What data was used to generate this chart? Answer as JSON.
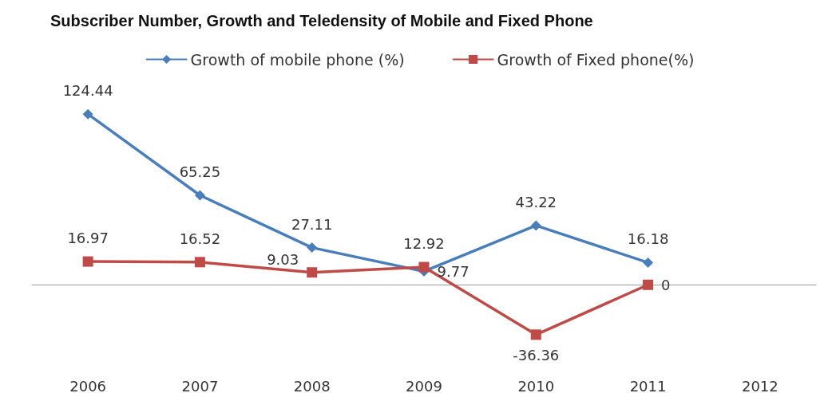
{
  "chart_data": {
    "type": "line",
    "title": "Subscriber Number, Growth and Teledensity of Mobile and Fixed Phone",
    "categories": [
      "2006",
      "2007",
      "2008",
      "2009",
      "2010",
      "2011",
      "2012"
    ],
    "series": [
      {
        "name": "Growth of mobile phone (%)",
        "color": "#4a7ebb",
        "marker": "diamond",
        "values": [
          124.44,
          65.25,
          27.11,
          9.77,
          43.22,
          16.18,
          null
        ]
      },
      {
        "name": "Growth of Fixed phone(%)",
        "color": "#be4b48",
        "marker": "square",
        "values": [
          16.97,
          16.52,
          9.03,
          12.92,
          -36.36,
          0,
          null
        ]
      }
    ],
    "data_labels": true,
    "grid": false,
    "legend": "top"
  }
}
